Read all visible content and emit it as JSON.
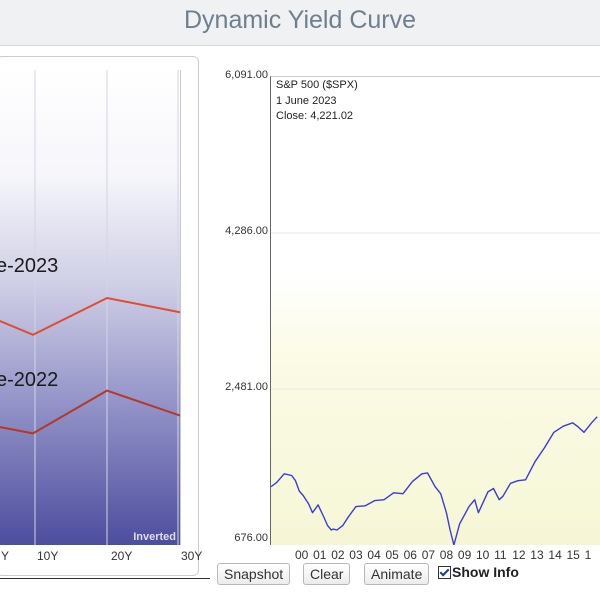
{
  "header": {
    "title": "Dynamic Yield Curve"
  },
  "yield_panel": {
    "label_current": "e-2023",
    "label_previous": "e-2022",
    "inverted_label": "Inverted",
    "x_ticks": [
      "Y",
      "10Y",
      "20Y",
      "30Y"
    ],
    "colors": {
      "current": "#e24a33",
      "previous": "#b13a2c"
    }
  },
  "spx_chart": {
    "info": {
      "symbol": "S&P 500 ($SPX)",
      "date": "1  June 2023",
      "close": "Close: 4,221.02"
    },
    "y_ticks": [
      "6,091.00",
      "4,286.00",
      "2,481.00",
      "676.00"
    ],
    "x_ticks": [
      "00",
      "01",
      "02",
      "03",
      "04",
      "05",
      "06",
      "07",
      "08",
      "09",
      "10",
      "11",
      "12",
      "13",
      "14",
      "15",
      "1"
    ],
    "line_color": "#3b3bd8"
  },
  "controls": {
    "snapshot": "Snapshot",
    "clear": "Clear",
    "animate": "Animate",
    "show_info": "Show Info",
    "show_info_checked": true
  },
  "chart_data": [
    {
      "type": "line",
      "title": "",
      "x": [
        "Y",
        "10Y",
        "20Y",
        "30Y"
      ],
      "series": [
        {
          "name": "e-2023",
          "values": [
            3.9,
            3.77,
            4.08,
            3.96
          ]
        },
        {
          "name": "e-2022",
          "values": [
            3.0,
            2.94,
            3.3,
            3.09
          ]
        }
      ]
    },
    {
      "type": "line",
      "title": "S&P 500 ($SPX)",
      "x": [
        "1999.5",
        "1999.8",
        "2000.2",
        "2000.6",
        "2000.8",
        "2001.0",
        "2001.2",
        "2001.5",
        "2001.7",
        "2002.0",
        "2002.3",
        "2002.5",
        "2002.7",
        "2002.8",
        "2003.0",
        "2003.3",
        "2003.6",
        "2004.0",
        "2004.5",
        "2005.0",
        "2005.5",
        "2006.0",
        "2006.5",
        "2007.0",
        "2007.5",
        "2007.8",
        "2008.2",
        "2008.5",
        "2008.8",
        "2009.0",
        "2009.2",
        "2009.5",
        "2010.0",
        "2010.3",
        "2010.5",
        "2011.0",
        "2011.3",
        "2011.6",
        "2011.8",
        "2012.2",
        "2012.6",
        "2013.0",
        "2013.5",
        "2014.0",
        "2014.5",
        "2015.0",
        "2015.5",
        "2015.8",
        "2016.1",
        "2016.5",
        "2016.8"
      ],
      "values": [
        1350,
        1400,
        1500,
        1480,
        1420,
        1300,
        1250,
        1150,
        1050,
        1140,
        1000,
        900,
        850,
        860,
        850,
        900,
        1000,
        1120,
        1130,
        1190,
        1200,
        1280,
        1270,
        1410,
        1500,
        1510,
        1350,
        1270,
        1050,
        850,
        676,
        920,
        1120,
        1200,
        1050,
        1290,
        1330,
        1200,
        1240,
        1390,
        1420,
        1430,
        1640,
        1800,
        1980,
        2050,
        2090,
        2040,
        1980,
        2090,
        2160
      ]
    }
  ]
}
